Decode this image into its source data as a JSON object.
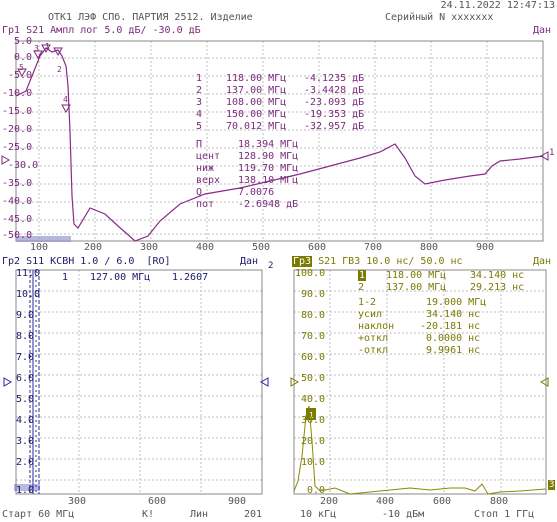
{
  "header": {
    "datetime": "24.11.2022 12:47:13",
    "title": "ОТК1 ЛЭФ СПб. ПАРТИЯ 2512. Изделие",
    "serial": "Серийный N xxxxxxx"
  },
  "trace1": {
    "label": "Гр1 S21 Ампл лог 5.0 дБ/ -30.0 дБ",
    "status": "Дан",
    "y_ticks": [
      "5.0",
      "0.0",
      "-5.0",
      "-10.0",
      "-15.0",
      "-20.0",
      "-25.0",
      "-30.0",
      "-35.0",
      "-40.0",
      "-45.0",
      "-50.0"
    ],
    "x_ticks": [
      "100",
      "200",
      "300",
      "400",
      "500",
      "600",
      "700",
      "800",
      "900"
    ],
    "ref_marker": "1",
    "markers": [
      {
        "n": "1",
        "freq": "118.00 МГц",
        "val": "-4.1235 дБ"
      },
      {
        "n": "2",
        "freq": "137.00 МГц",
        "val": "-3.4428 дБ"
      },
      {
        "n": "3",
        "freq": "108.00 МГц",
        "val": "-23.093 дБ"
      },
      {
        "n": "4",
        "freq": "150.00 МГц",
        "val": "-19.353 дБ"
      },
      {
        "n": "5",
        "freq": "70.012 МГц",
        "val": "-32.957 дБ"
      }
    ],
    "stats": [
      {
        "k": "П",
        "v": "18.394 МГц"
      },
      {
        "k": "цент",
        "v": "128.90 МГц"
      },
      {
        "k": "ниж",
        "v": "119.70 МГц"
      },
      {
        "k": "верх",
        "v": "138.10 МГц"
      },
      {
        "k": "Q",
        "v": "7.0076"
      },
      {
        "k": "пот",
        "v": "-2.6948 дБ"
      }
    ]
  },
  "trace2": {
    "label": "Гр2 S11 КСВН 1.0 / 6.0  [RO]",
    "status": "Дан",
    "ch_num": "2",
    "y_ticks": [
      "11.0",
      "10.0",
      "9.0",
      "8.0",
      "7.0",
      "6.0",
      "5.0",
      "4.0",
      "3.0",
      "2.0",
      "1.0"
    ],
    "x_ticks": [
      "300",
      "600",
      "900"
    ],
    "marker_readout": {
      "n": "1",
      "freq": "127.00 МГц",
      "val": "1.2607"
    }
  },
  "trace3": {
    "label_prefix": "Гр3",
    "label": " S21 ГВЗ 10.0 нс/ 50.0 нс",
    "status": "Дан",
    "y_ticks": [
      "100.0",
      "90.0",
      "80.0",
      "70.0",
      "60.0",
      "50.0",
      "40.0",
      "30.0",
      "20.0",
      "10.0",
      "0.0"
    ],
    "x_ticks": [
      "200",
      "400",
      "600",
      "800"
    ],
    "marker_badge": "3",
    "markers": [
      {
        "n": "1",
        "freq": "118.00 МГц",
        "val": "34.140 нс"
      },
      {
        "n": "2",
        "freq": "137.00 МГц",
        "val": "29.213 нс"
      }
    ],
    "stats": [
      {
        "k": "1-2",
        "v": "19.000 МГц"
      },
      {
        "k": "усил",
        "v": "34.140 нс"
      },
      {
        "k": "наклон",
        "v": "-20.181 нс"
      },
      {
        "k": "+откл",
        "v": "0.0000 нс"
      },
      {
        "k": "-откл",
        "v": "9.9961 нс"
      }
    ]
  },
  "footer": {
    "start": "Старт 60 МГц",
    "bw": "К!",
    "type": "Лин",
    "points": "201",
    "ifbw": "10 кГц",
    "power": "-10 дБм",
    "stop": "Стоп 1 ГГц"
  }
}
